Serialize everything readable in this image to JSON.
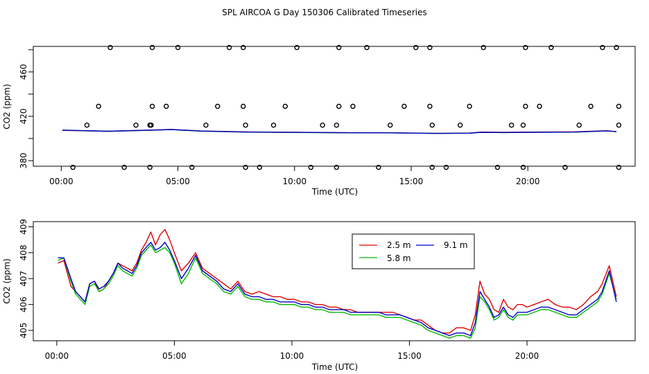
{
  "title": "SPL AIRCOA G  Day 150306  Calibrated Timeseries",
  "chart_data": [
    {
      "type": "scatter",
      "xlabel": "Time (UTC)",
      "ylabel": "CO2 (ppm)",
      "xlim": [
        -1.2,
        24.6
      ],
      "ylim": [
        375,
        483
      ],
      "xticks": [
        0,
        5,
        10,
        15,
        20
      ],
      "xtick_labels": [
        "00:00",
        "05:00",
        "10:00",
        "15:00",
        "20:00"
      ],
      "yticks": [
        380,
        420,
        460
      ],
      "yticks_minor": [
        400,
        440,
        480
      ],
      "grid": false,
      "lines": [
        {
          "name": "2.5 m",
          "color": "#dd0000",
          "x": [
            0.05,
            2,
            4,
            4.7,
            6,
            8,
            10,
            12,
            14,
            16,
            17.5,
            18,
            19,
            20,
            22,
            23.4,
            23.8
          ],
          "y": [
            407.3,
            406.5,
            407.7,
            408.2,
            406.8,
            405.9,
            405.6,
            405.3,
            405.2,
            404.6,
            404.9,
            405.8,
            405.6,
            405.8,
            406.0,
            407.0,
            406.1
          ]
        },
        {
          "name": "5.8 m",
          "color": "#00bb00",
          "x": [
            0.05,
            2,
            4,
            4.7,
            6,
            8,
            10,
            12,
            14,
            16,
            17.5,
            18,
            19,
            20,
            22,
            23.4,
            23.8
          ],
          "y": [
            407.5,
            406.4,
            407.5,
            408.0,
            406.6,
            405.7,
            405.4,
            405.1,
            405.1,
            404.6,
            404.8,
            405.5,
            405.3,
            405.5,
            405.7,
            406.8,
            406.1
          ]
        },
        {
          "name": "9.1 m",
          "color": "#0000cc",
          "x": [
            0.05,
            2,
            4,
            4.7,
            6,
            8,
            10,
            12,
            14,
            16,
            17.5,
            18,
            19,
            20,
            22,
            23.4,
            23.8
          ],
          "y": [
            407.6,
            406.5,
            407.6,
            408.1,
            406.7,
            405.8,
            405.5,
            405.2,
            405.1,
            404.6,
            404.8,
            405.6,
            405.4,
            405.6,
            405.8,
            406.9,
            406.1
          ]
        }
      ],
      "points": {
        "x": [
          0.5,
          2.7,
          3.8,
          5.6,
          7.9,
          8.5,
          10.7,
          11.8,
          13.6,
          15.9,
          16.5,
          18.7,
          19.8,
          21.6,
          23.9,
          1.1,
          3.2,
          3.8,
          3.85,
          6.2,
          7.9,
          9.1,
          11.2,
          11.8,
          14.1,
          15.9,
          17.1,
          19.3,
          19.8,
          22.2,
          23.9,
          1.6,
          3.9,
          4.5,
          6.7,
          7.8,
          9.6,
          11.9,
          12.5,
          14.7,
          15.8,
          17.5,
          19.9,
          20.5,
          22.7,
          23.9,
          2.1,
          3.9,
          5.0,
          7.2,
          7.8,
          10.1,
          11.9,
          13.1,
          15.2,
          15.8,
          18.1,
          19.9,
          21.0,
          23.2,
          23.8
        ],
        "y": [
          374,
          374,
          374,
          374,
          374,
          374,
          374,
          374,
          374,
          374,
          374,
          374,
          374,
          374,
          374,
          412,
          412,
          412,
          412,
          412,
          412,
          412,
          412,
          412,
          412,
          412,
          412,
          412,
          412,
          412,
          412,
          429,
          429,
          429,
          429,
          429,
          429,
          429,
          429,
          429,
          429,
          429,
          429,
          429,
          429,
          429,
          482,
          482,
          482,
          482,
          482,
          482,
          482,
          482,
          482,
          482,
          482,
          482,
          482,
          482,
          482
        ]
      }
    },
    {
      "type": "line",
      "xlabel": "Time (UTC)",
      "ylabel": "CO2 (ppm)",
      "xlim": [
        -1.0,
        24.6
      ],
      "ylim": [
        404.6,
        409.2
      ],
      "xticks": [
        0,
        5,
        10,
        15,
        20
      ],
      "xtick_labels": [
        "00:00",
        "05:00",
        "10:00",
        "15:00",
        "20:00"
      ],
      "yticks": [
        405,
        406,
        407,
        408,
        409
      ],
      "ytick_labels": [
        "405",
        "406",
        "407",
        "408",
        "409"
      ],
      "grid": false,
      "legend": "top-center",
      "series": [
        {
          "name": "2.5 m",
          "color": "#dd0000",
          "x": [
            0.05,
            0.3,
            0.6,
            0.8,
            1.0,
            1.2,
            1.4,
            1.6,
            1.8,
            2.0,
            2.2,
            2.4,
            2.6,
            2.8,
            3.0,
            3.2,
            3.4,
            3.6,
            3.8,
            4.0,
            4.2,
            4.4,
            4.6,
            4.8,
            5.0,
            5.3,
            5.6,
            5.9,
            6.2,
            6.5,
            6.8,
            7.1,
            7.4,
            7.7,
            8.0,
            8.3,
            8.6,
            8.9,
            9.2,
            9.5,
            9.8,
            10.1,
            10.4,
            10.7,
            11.0,
            11.3,
            11.6,
            11.9,
            12.2,
            12.5,
            12.8,
            13.1,
            13.4,
            13.7,
            14.0,
            14.3,
            14.6,
            14.9,
            15.2,
            15.5,
            15.8,
            16.1,
            16.4,
            16.7,
            17.0,
            17.3,
            17.6,
            17.8,
            18.0,
            18.2,
            18.4,
            18.6,
            18.8,
            19.0,
            19.2,
            19.4,
            19.6,
            19.8,
            20.0,
            20.3,
            20.6,
            20.9,
            21.2,
            21.5,
            21.8,
            22.1,
            22.4,
            22.7,
            23.0,
            23.2,
            23.5,
            23.8
          ],
          "y": [
            407.6,
            407.7,
            406.7,
            406.5,
            406.3,
            406.1,
            406.8,
            406.9,
            406.5,
            406.6,
            406.9,
            407.2,
            407.6,
            407.5,
            407.4,
            407.3,
            407.6,
            408.1,
            408.4,
            408.8,
            408.3,
            408.7,
            408.9,
            408.5,
            408.0,
            407.3,
            407.6,
            408.0,
            407.4,
            407.2,
            407.0,
            406.8,
            406.6,
            406.9,
            406.5,
            406.4,
            406.5,
            406.4,
            406.3,
            406.3,
            406.2,
            406.2,
            406.1,
            406.1,
            406.0,
            406.0,
            405.9,
            405.9,
            405.8,
            405.8,
            405.7,
            405.7,
            405.7,
            405.7,
            405.7,
            405.7,
            405.6,
            405.5,
            405.4,
            405.4,
            405.2,
            405.0,
            404.9,
            404.9,
            405.1,
            405.1,
            405.0,
            405.6,
            406.9,
            406.4,
            406.2,
            405.8,
            405.7,
            406.2,
            405.9,
            405.8,
            406.0,
            406.0,
            405.9,
            406.0,
            406.1,
            406.2,
            406.0,
            405.9,
            405.9,
            405.8,
            406.0,
            406.3,
            406.5,
            406.8,
            407.5,
            406.3
          ]
        },
        {
          "name": "5.8 m",
          "color": "#00bb00",
          "x": [
            0.05,
            0.3,
            0.6,
            0.8,
            1.0,
            1.2,
            1.4,
            1.6,
            1.8,
            2.0,
            2.2,
            2.4,
            2.6,
            2.8,
            3.0,
            3.2,
            3.4,
            3.6,
            3.8,
            4.0,
            4.2,
            4.4,
            4.6,
            4.8,
            5.0,
            5.3,
            5.6,
            5.9,
            6.2,
            6.5,
            6.8,
            7.1,
            7.4,
            7.7,
            8.0,
            8.3,
            8.6,
            8.9,
            9.2,
            9.5,
            9.8,
            10.1,
            10.4,
            10.7,
            11.0,
            11.3,
            11.6,
            11.9,
            12.2,
            12.5,
            12.8,
            13.1,
            13.4,
            13.7,
            14.0,
            14.3,
            14.6,
            14.9,
            15.2,
            15.5,
            15.8,
            16.1,
            16.4,
            16.7,
            17.0,
            17.3,
            17.6,
            17.8,
            18.0,
            18.2,
            18.4,
            18.6,
            18.8,
            19.0,
            19.2,
            19.4,
            19.6,
            19.8,
            20.0,
            20.3,
            20.6,
            20.9,
            21.2,
            21.5,
            21.8,
            22.1,
            22.4,
            22.7,
            23.0,
            23.2,
            23.5,
            23.8
          ],
          "y": [
            407.7,
            407.8,
            406.9,
            406.4,
            406.2,
            406.0,
            406.7,
            406.8,
            406.5,
            406.6,
            406.8,
            407.1,
            407.5,
            407.3,
            407.2,
            407.1,
            407.4,
            407.9,
            408.1,
            408.3,
            408.0,
            408.1,
            408.2,
            408.0,
            407.6,
            406.8,
            407.2,
            407.8,
            407.2,
            407.0,
            406.8,
            406.5,
            406.4,
            406.7,
            406.3,
            406.2,
            406.2,
            406.1,
            406.1,
            406.0,
            406.0,
            406.0,
            405.9,
            405.9,
            405.8,
            405.8,
            405.7,
            405.7,
            405.7,
            405.6,
            405.6,
            405.6,
            405.6,
            405.6,
            405.5,
            405.5,
            405.5,
            405.4,
            405.3,
            405.2,
            405.0,
            404.9,
            404.8,
            404.7,
            404.8,
            404.8,
            404.7,
            405.1,
            406.3,
            406.1,
            405.8,
            405.4,
            405.5,
            405.8,
            405.5,
            405.4,
            405.6,
            405.6,
            405.6,
            405.7,
            405.8,
            405.8,
            405.7,
            405.6,
            405.5,
            405.5,
            405.7,
            405.9,
            406.1,
            406.4,
            407.2,
            406.2
          ]
        },
        {
          "name": "9.1 m",
          "color": "#0000cc",
          "x": [
            0.05,
            0.3,
            0.6,
            0.8,
            1.0,
            1.2,
            1.4,
            1.6,
            1.8,
            2.0,
            2.2,
            2.4,
            2.6,
            2.8,
            3.0,
            3.2,
            3.4,
            3.6,
            3.8,
            4.0,
            4.2,
            4.4,
            4.6,
            4.8,
            5.0,
            5.3,
            5.6,
            5.9,
            6.2,
            6.5,
            6.8,
            7.1,
            7.4,
            7.7,
            8.0,
            8.3,
            8.6,
            8.9,
            9.2,
            9.5,
            9.8,
            10.1,
            10.4,
            10.7,
            11.0,
            11.3,
            11.6,
            11.9,
            12.2,
            12.5,
            12.8,
            13.1,
            13.4,
            13.7,
            14.0,
            14.3,
            14.6,
            14.9,
            15.2,
            15.5,
            15.8,
            16.1,
            16.4,
            16.7,
            17.0,
            17.3,
            17.6,
            17.8,
            18.0,
            18.2,
            18.4,
            18.6,
            18.8,
            19.0,
            19.2,
            19.4,
            19.6,
            19.8,
            20.0,
            20.3,
            20.6,
            20.9,
            21.2,
            21.5,
            21.8,
            22.1,
            22.4,
            22.7,
            23.0,
            23.2,
            23.5,
            23.8
          ],
          "y": [
            407.8,
            407.8,
            407.0,
            406.5,
            406.3,
            406.1,
            406.8,
            406.9,
            406.6,
            406.7,
            406.9,
            407.2,
            407.6,
            407.4,
            407.3,
            407.2,
            407.5,
            408.0,
            408.2,
            408.4,
            408.1,
            408.2,
            408.4,
            408.1,
            407.7,
            407.0,
            407.4,
            407.9,
            407.3,
            407.1,
            406.9,
            406.6,
            406.5,
            406.8,
            406.4,
            406.3,
            406.3,
            406.2,
            406.2,
            406.1,
            406.1,
            406.1,
            406.0,
            406.0,
            405.9,
            405.9,
            405.8,
            405.8,
            405.8,
            405.7,
            405.7,
            405.7,
            405.7,
            405.7,
            405.6,
            405.6,
            405.6,
            405.5,
            405.4,
            405.3,
            405.1,
            405.0,
            404.9,
            404.8,
            404.9,
            404.9,
            404.8,
            405.3,
            406.5,
            406.2,
            405.9,
            405.5,
            405.6,
            405.9,
            405.6,
            405.5,
            405.7,
            405.7,
            405.7,
            405.8,
            405.9,
            405.9,
            405.8,
            405.7,
            405.6,
            405.6,
            405.8,
            406.0,
            406.2,
            406.5,
            407.3,
            406.1
          ]
        }
      ]
    }
  ]
}
